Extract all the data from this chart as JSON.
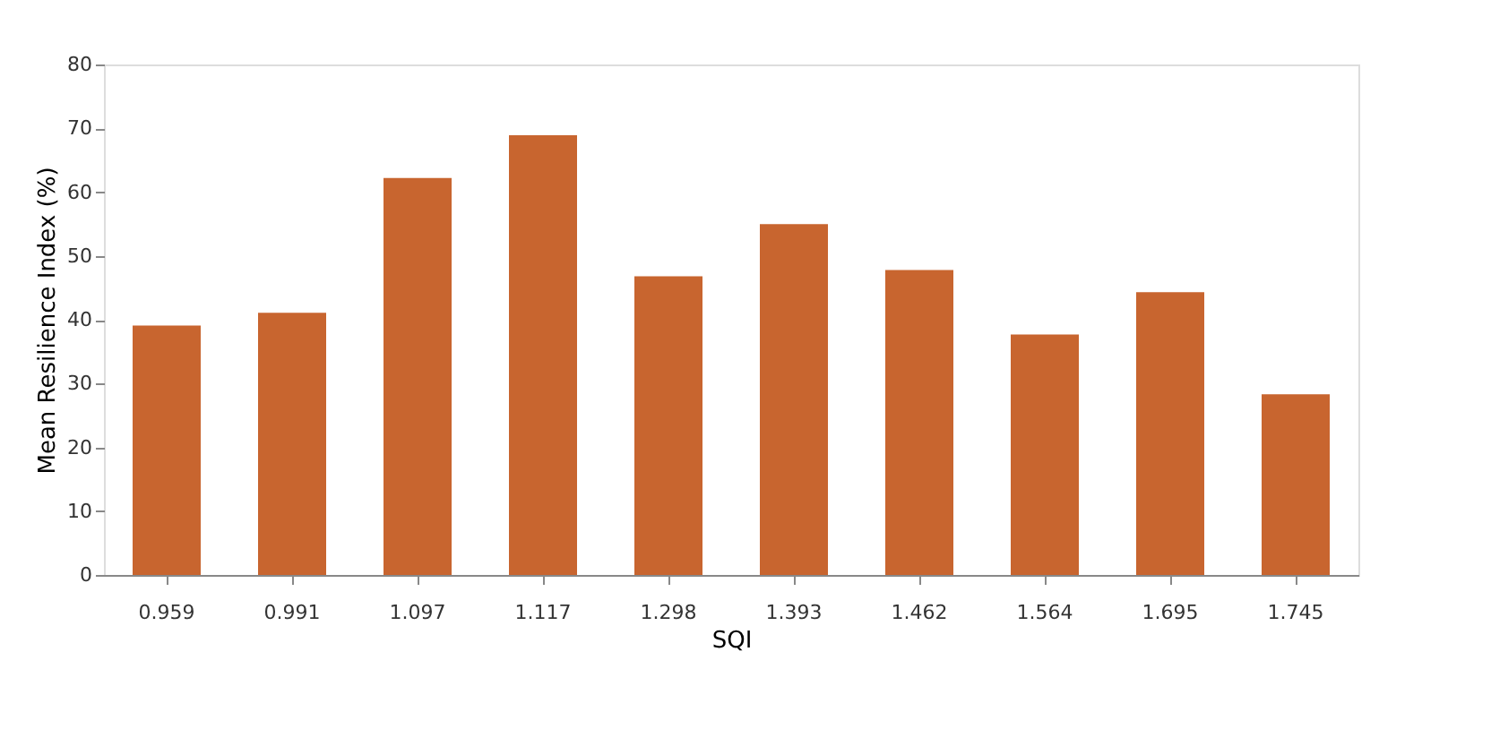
{
  "chart_data": {
    "type": "bar",
    "xlabel": "SQI",
    "ylabel": "Mean Resilience Index (%)",
    "categories": [
      "0.959",
      "0.991",
      "1.097",
      "1.117",
      "1.298",
      "1.393",
      "1.462",
      "1.564",
      "1.695",
      "1.745"
    ],
    "values": [
      39.1,
      41.1,
      62.2,
      68.9,
      46.8,
      55.0,
      47.8,
      37.7,
      44.3,
      28.3
    ],
    "color": "#c8652f",
    "ylim": [
      0,
      80
    ],
    "yticks": [
      0,
      10,
      20,
      30,
      40,
      50,
      60,
      70,
      80
    ],
    "grid": false
  }
}
